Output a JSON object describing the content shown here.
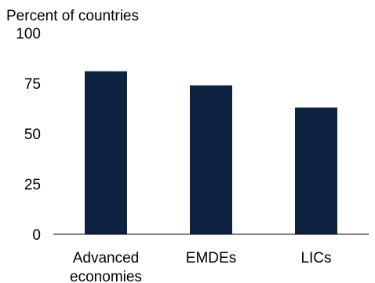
{
  "chart_data": {
    "type": "bar",
    "title": "",
    "ylabel": "Percent of countries",
    "xlabel": "",
    "categories": [
      "Advanced economies",
      "EMDEs",
      "LICs"
    ],
    "category_label_lines": [
      [
        "Advanced",
        "economies"
      ],
      [
        "EMDEs"
      ],
      [
        "LICs"
      ]
    ],
    "values": [
      81,
      74,
      63
    ],
    "ylim": [
      0,
      100
    ],
    "yticks": [
      "0",
      "25",
      "50",
      "75",
      "100"
    ],
    "grid": false,
    "legend": "none",
    "bar_color": "#0d2240"
  }
}
